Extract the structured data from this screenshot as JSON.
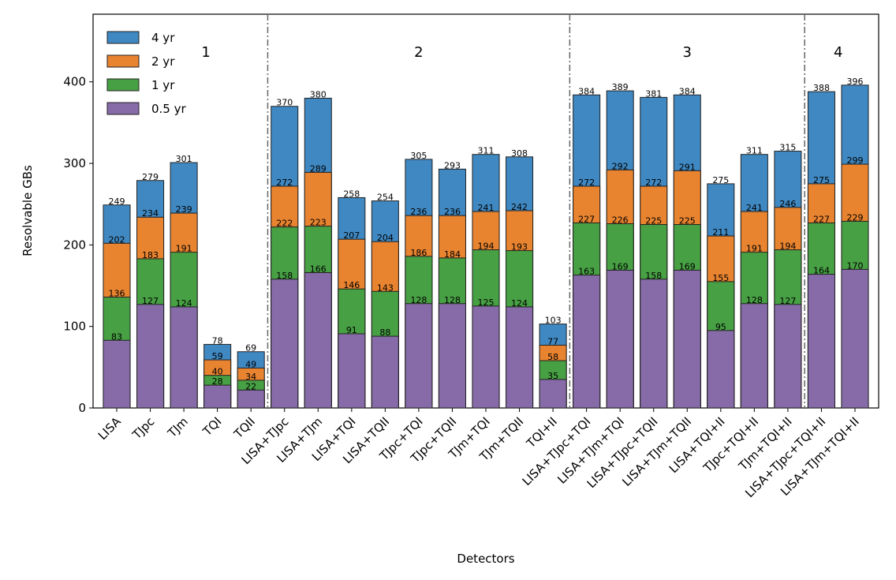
{
  "chart_data": {
    "type": "bar",
    "xlabel": "Detectors",
    "ylabel": "Resolvable GBs",
    "categories": [
      "LISA",
      "TJpc",
      "TJm",
      "TQI",
      "TQII",
      "LISA+TJpc",
      "LISA+TJm",
      "LISA+TQI",
      "LISA+TQII",
      "TJpc+TQI",
      "TJpc+TQII",
      "TJm+TQI",
      "TJm+TQII",
      "TQI+II",
      "LISA+TJpc+TQI",
      "LISA+TJm+TQI",
      "LISA+TJpc+TQII",
      "LISA+TJm+TQII",
      "LISA+TQI+II",
      "TJpc+TQI+II",
      "TJm+TQI+II",
      "LISA+TJpc+TQI+II",
      "LISA+TJm+TQI+II"
    ],
    "series": [
      {
        "name": "4 yr",
        "color": "#3f88c2",
        "values": [
          249,
          279,
          301,
          78,
          69,
          370,
          380,
          258,
          254,
          305,
          293,
          311,
          308,
          103,
          384,
          389,
          381,
          384,
          275,
          311,
          315,
          388,
          396
        ]
      },
      {
        "name": "2 yr",
        "color": "#e8832f",
        "values": [
          202,
          234,
          239,
          59,
          49,
          272,
          289,
          207,
          204,
          236,
          236,
          241,
          242,
          77,
          272,
          292,
          272,
          291,
          211,
          241,
          246,
          275,
          299
        ]
      },
      {
        "name": "1 yr",
        "color": "#47a043",
        "values": [
          136,
          183,
          191,
          40,
          34,
          222,
          223,
          146,
          143,
          186,
          184,
          194,
          193,
          58,
          227,
          226,
          225,
          225,
          155,
          191,
          194,
          227,
          229
        ]
      },
      {
        "name": "0.5 yr",
        "color": "#876ba8",
        "values": [
          83,
          127,
          124,
          28,
          22,
          158,
          166,
          91,
          88,
          128,
          128,
          125,
          124,
          35,
          163,
          169,
          158,
          169,
          95,
          128,
          127,
          164,
          170
        ]
      }
    ],
    "groups": [
      {
        "label": "1",
        "first": 0,
        "last": 4
      },
      {
        "label": "2",
        "first": 5,
        "last": 13
      },
      {
        "label": "3",
        "first": 14,
        "last": 20
      },
      {
        "label": "4",
        "first": 21,
        "last": 22
      }
    ],
    "ylim": [
      0,
      483
    ],
    "yticks": [
      0,
      100,
      200,
      300,
      400
    ],
    "legend": "upper left"
  }
}
